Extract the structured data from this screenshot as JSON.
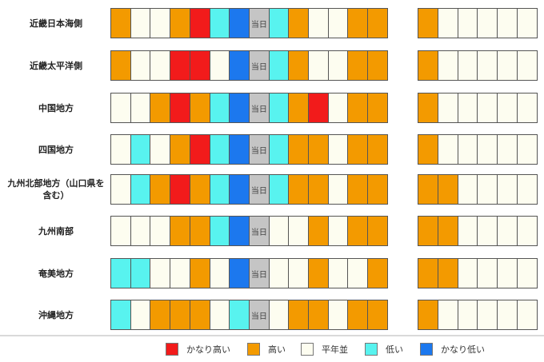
{
  "colors": {
    "very_high": "#f21b1b",
    "high": "#f39a00",
    "normal": "#fdfdf0",
    "low": "#58f3ef",
    "very_low": "#1c78ee",
    "today": "#c5c5c5"
  },
  "today_label": "当日",
  "regions": [
    {
      "name": "近畿日本海側",
      "days": [
        "high",
        "normal",
        "normal",
        "high",
        "very_high",
        "low",
        "very_low",
        "today",
        "low",
        "high",
        "normal",
        "normal",
        "high",
        "high"
      ],
      "extended": [
        "high",
        "normal",
        "normal",
        "normal",
        "normal",
        "normal"
      ]
    },
    {
      "name": "近畿太平洋側",
      "days": [
        "high",
        "normal",
        "normal",
        "very_high",
        "very_high",
        "normal",
        "very_low",
        "today",
        "low",
        "high",
        "normal",
        "normal",
        "high",
        "high"
      ],
      "extended": [
        "high",
        "normal",
        "normal",
        "normal",
        "normal",
        "normal"
      ]
    },
    {
      "name": "中国地方",
      "days": [
        "normal",
        "normal",
        "high",
        "very_high",
        "high",
        "low",
        "very_low",
        "today",
        "low",
        "high",
        "very_high",
        "normal",
        "high",
        "high"
      ],
      "extended": [
        "high",
        "normal",
        "normal",
        "normal",
        "normal",
        "normal"
      ]
    },
    {
      "name": "四国地方",
      "days": [
        "normal",
        "low",
        "normal",
        "high",
        "very_high",
        "low",
        "very_low",
        "today",
        "low",
        "high",
        "high",
        "normal",
        "high",
        "high"
      ],
      "extended": [
        "high",
        "normal",
        "normal",
        "normal",
        "normal",
        "normal"
      ]
    },
    {
      "name": "九州北部地方（山口県を含む）",
      "days": [
        "normal",
        "low",
        "high",
        "very_high",
        "high",
        "low",
        "very_low",
        "today",
        "low",
        "high",
        "high",
        "normal",
        "high",
        "high"
      ],
      "extended": [
        "high",
        "high",
        "normal",
        "normal",
        "normal",
        "normal"
      ]
    },
    {
      "name": "九州南部",
      "days": [
        "normal",
        "normal",
        "normal",
        "high",
        "high",
        "low",
        "very_low",
        "today",
        "normal",
        "normal",
        "high",
        "normal",
        "high",
        "high"
      ],
      "extended": [
        "high",
        "high",
        "normal",
        "normal",
        "normal",
        "normal"
      ]
    },
    {
      "name": "奄美地方",
      "days": [
        "low",
        "low",
        "normal",
        "normal",
        "high",
        "normal",
        "very_low",
        "today",
        "normal",
        "normal",
        "high",
        "normal",
        "normal",
        "high"
      ],
      "extended": [
        "high",
        "high",
        "normal",
        "normal",
        "normal",
        "normal"
      ]
    },
    {
      "name": "沖縄地方",
      "days": [
        "low",
        "normal",
        "high",
        "high",
        "high",
        "normal",
        "low",
        "today",
        "normal",
        "high",
        "high",
        "normal",
        "high",
        "high"
      ],
      "extended": [
        "high",
        "normal",
        "normal",
        "normal",
        "normal",
        "normal"
      ]
    }
  ],
  "legend": [
    {
      "key": "very_high",
      "label": "かなり高い"
    },
    {
      "key": "high",
      "label": "高い"
    },
    {
      "key": "normal",
      "label": "平年並"
    },
    {
      "key": "low",
      "label": "低い"
    },
    {
      "key": "very_low",
      "label": "かなり低い"
    }
  ]
}
